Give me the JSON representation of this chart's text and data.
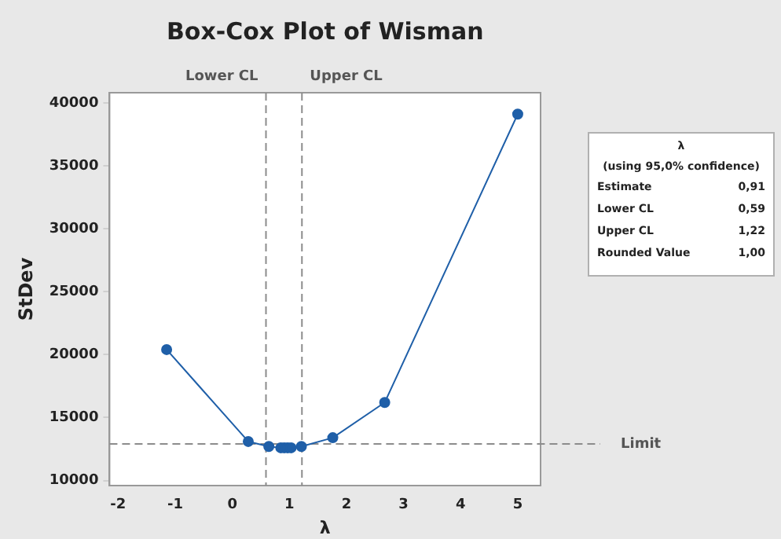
{
  "chart_data": {
    "type": "line",
    "title": "Box-Cox Plot of Wisman",
    "xlabel": "λ",
    "ylabel": "StDev",
    "x": [
      -1.15,
      0.28,
      0.64,
      0.85,
      0.91,
      0.97,
      1.03,
      1.21,
      1.76,
      2.67,
      5.0
    ],
    "series": [
      {
        "color": "#1f5fa8",
        "values": [
          20400,
          13100,
          12700,
          12600,
          12600,
          12600,
          12600,
          12700,
          13400,
          16200,
          39100
        ]
      }
    ],
    "xlim": [
      -2.15,
      5.4
    ],
    "xticks": [
      -2,
      -1,
      0,
      1,
      2,
      3,
      4,
      5
    ],
    "ylim": [
      9600,
      40800
    ],
    "yticks": [
      10000,
      15000,
      20000,
      25000,
      30000,
      35000,
      40000
    ],
    "ref_lines": [
      {
        "axis": "x",
        "value": 0.59,
        "label": "Lower CL",
        "color": "#8c8c8c",
        "line_style": "dashed"
      },
      {
        "axis": "x",
        "value": 1.22,
        "label": "Upper CL",
        "color": "#8c8c8c",
        "line_style": "dashed"
      },
      {
        "axis": "y",
        "value": 12900,
        "label": "Limit",
        "color": "#8c8c8c",
        "line_style": "dashed"
      }
    ],
    "annotations": [
      "λ",
      "(using 95,0% confidence)",
      "Estimate 0,91",
      "Lower CL 0,59",
      "Upper CL 1,22",
      "Rounded Value 1,00"
    ],
    "grid": false,
    "legend": false,
    "marker": "circle",
    "line_style": "solid"
  }
}
